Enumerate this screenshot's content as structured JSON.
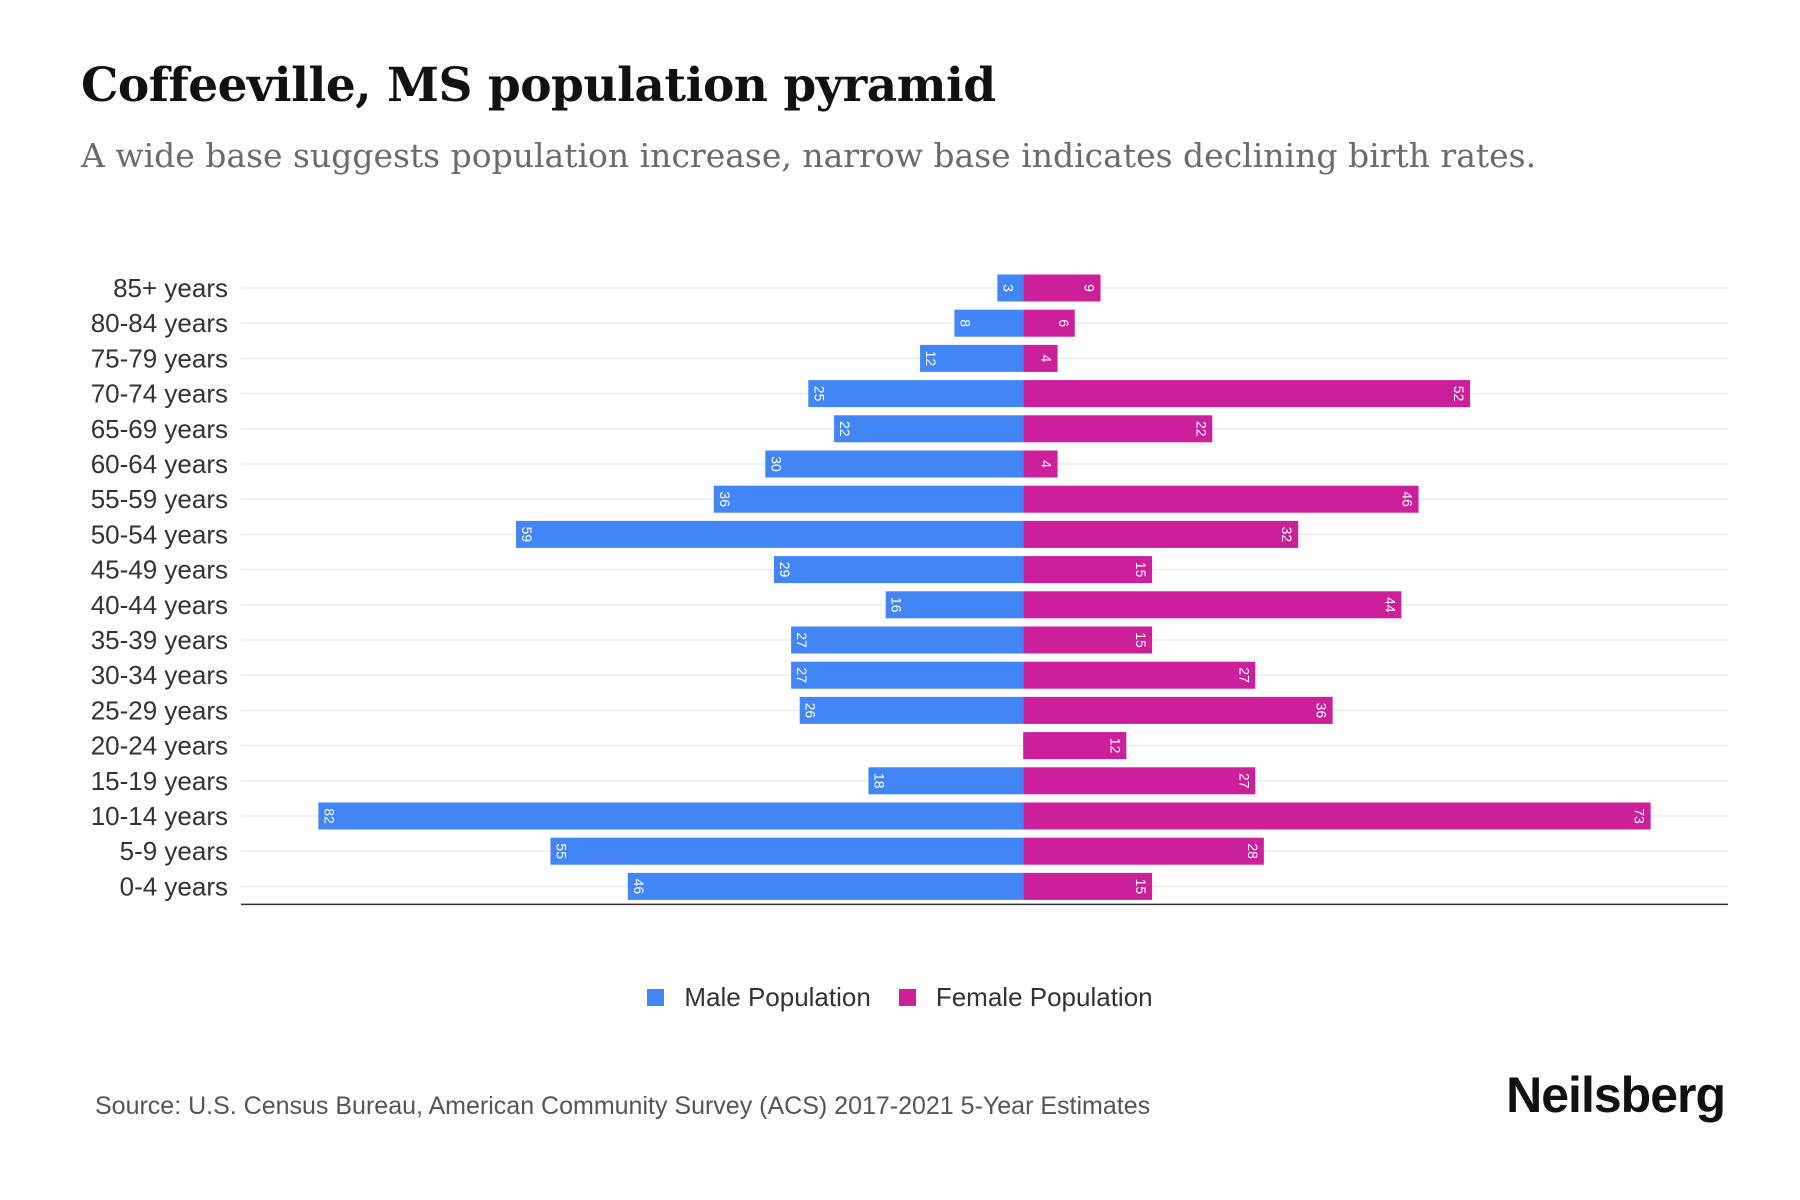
{
  "header": {
    "title": "Coffeeville, MS population pyramid",
    "subtitle": "A wide base suggests population increase, narrow base indicates declining birth rates."
  },
  "colors": {
    "male": "#4285f4",
    "female": "#cc1f9a",
    "grid": "#e6e6e6",
    "axis": "#333333"
  },
  "legend": {
    "male_label": "Male Population",
    "female_label": "Female Population"
  },
  "footer": {
    "source": "Source: U.S. Census Bureau, American Community Survey (ACS) 2017-2021 5-Year Estimates",
    "brand": "Neilsberg"
  },
  "chart_data": {
    "type": "bar",
    "orientation": "horizontal-diverging",
    "title": "Coffeeville, MS population pyramid",
    "categories": [
      "85+ years",
      "80-84 years",
      "75-79 years",
      "70-74 years",
      "65-69 years",
      "60-64 years",
      "55-59 years",
      "50-54 years",
      "45-49 years",
      "40-44 years",
      "35-39 years",
      "30-34 years",
      "25-29 years",
      "20-24 years",
      "15-19 years",
      "10-14 years",
      "5-9 years",
      "0-4 years"
    ],
    "series": [
      {
        "name": "Male Population",
        "values": [
          3,
          8,
          12,
          25,
          22,
          30,
          36,
          59,
          29,
          16,
          27,
          27,
          26,
          0,
          18,
          82,
          55,
          46
        ]
      },
      {
        "name": "Female Population",
        "values": [
          9,
          6,
          4,
          52,
          22,
          4,
          46,
          32,
          15,
          44,
          15,
          27,
          36,
          12,
          27,
          73,
          28,
          15
        ]
      }
    ],
    "xlim": [
      -91,
      82
    ],
    "grid": true,
    "legend_position": "bottom-center"
  }
}
